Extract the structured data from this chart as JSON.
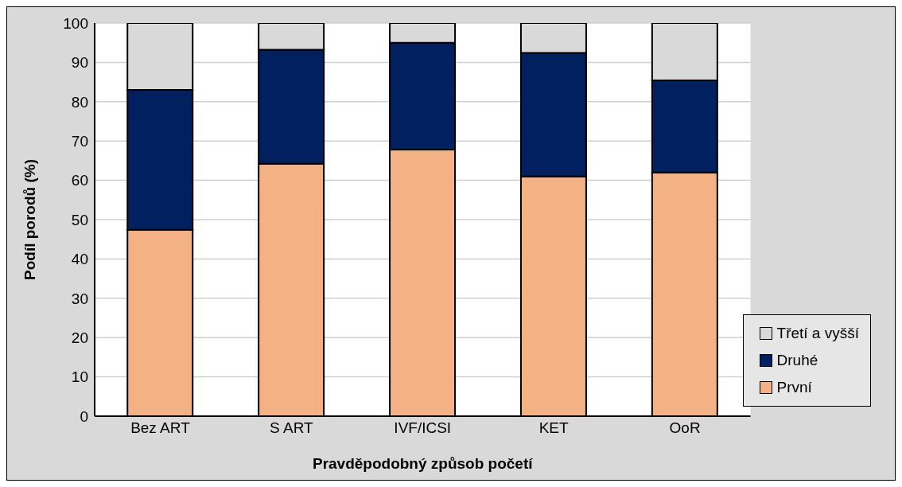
{
  "chart_data": {
    "type": "bar",
    "stacked": true,
    "xlabel": "Pravděpodobný způsob početí",
    "ylabel": "Podíl porodů (%)",
    "categories": [
      "Bez ART",
      "S ART",
      "IVF/ICSI",
      "KET",
      "OoR"
    ],
    "series": [
      {
        "name": "První",
        "color": "#f4b183",
        "values": [
          47.4,
          64.2,
          67.8,
          61.0,
          62.0
        ]
      },
      {
        "name": "Druhé",
        "color": "#002060",
        "values": [
          35.6,
          29.0,
          27.2,
          31.4,
          23.4
        ]
      },
      {
        "name": "Třetí a vyšší",
        "color": "#d9d9d9",
        "values": [
          17.0,
          6.8,
          5.0,
          7.6,
          14.6
        ]
      }
    ],
    "ylim": [
      0,
      100
    ],
    "yticks": [
      0,
      10,
      20,
      30,
      40,
      50,
      60,
      70,
      80,
      90,
      100
    ],
    "grid": "y",
    "legend": "bottom right"
  }
}
